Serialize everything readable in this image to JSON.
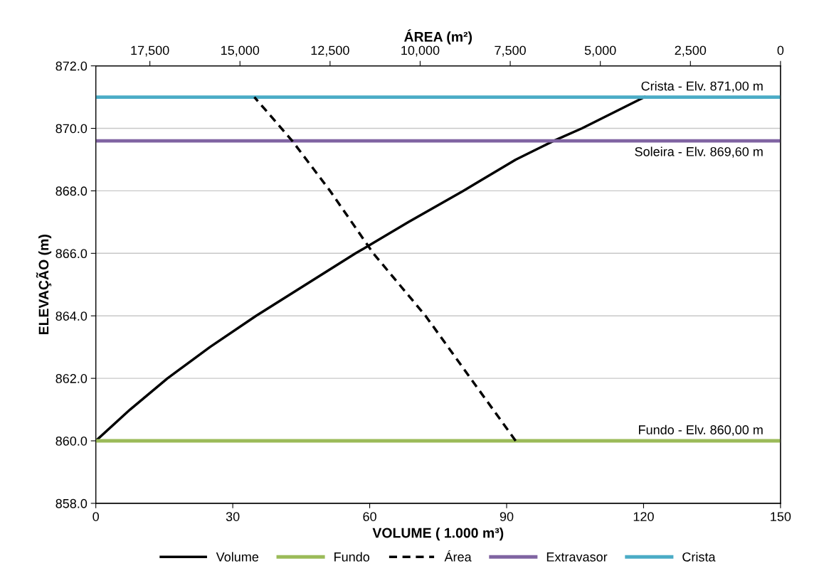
{
  "chart_data": {
    "type": "line",
    "xlabel": "VOLUME ( 1.000 m³)",
    "ylabel": "ELEVAÇÃO (m)",
    "x2label": "ÁREA (m²)",
    "xlim": [
      0,
      150
    ],
    "xticks": [
      0,
      30,
      60,
      90,
      120,
      150
    ],
    "x2lim": [
      19000,
      0
    ],
    "x2ticks": [
      {
        "value": 17500,
        "label": "17,500"
      },
      {
        "value": 15000,
        "label": "15,000"
      },
      {
        "value": 12500,
        "label": "12,500"
      },
      {
        "value": 10000,
        "label": "10,000"
      },
      {
        "value": 7500,
        "label": "7,500"
      },
      {
        "value": 5000,
        "label": "5,000"
      },
      {
        "value": 2500,
        "label": "2,500"
      },
      0
    ],
    "ylim": [
      858,
      872
    ],
    "yticks": [
      {
        "value": 858,
        "label": "858.0"
      },
      {
        "value": 860,
        "label": "860.0"
      },
      {
        "value": 862,
        "label": "862.0"
      },
      {
        "value": 864,
        "label": "864.0"
      },
      {
        "value": 866,
        "label": "866.0"
      },
      {
        "value": 868,
        "label": "868.0"
      },
      {
        "value": 870,
        "label": "870.0"
      },
      {
        "value": 872,
        "label": "872.0"
      }
    ],
    "grid": "y",
    "legend": "bottom",
    "series": [
      {
        "name": "Volume",
        "color": "#000000",
        "line_style": "solid",
        "x": [
          0,
          7.5,
          15.7,
          25,
          35.1,
          46,
          56.9,
          68.5,
          80.5,
          92,
          100.3,
          106.5,
          120.2
        ],
        "values": [
          860,
          861,
          862,
          863,
          864,
          865,
          866,
          867,
          868,
          869,
          869.6,
          870,
          871
        ]
      },
      {
        "name": "Fundo",
        "color": "#9bbb59",
        "line_style": "solid",
        "x": [
          0,
          150
        ],
        "values": [
          860,
          860
        ]
      },
      {
        "name": "Área",
        "color": "#000000",
        "line_style": "dashed",
        "axis": "x2",
        "x": [
          7350,
          8600,
          9850,
          11300,
          12500,
          13550,
          14600
        ],
        "values": [
          860,
          862,
          864,
          866,
          868,
          869.6,
          871
        ]
      },
      {
        "name": "Extravasor",
        "color": "#8064a2",
        "line_style": "solid",
        "x": [
          0,
          150
        ],
        "values": [
          869.6,
          869.6
        ]
      },
      {
        "name": "Crista",
        "color": "#4bacc6",
        "line_style": "solid",
        "x": [
          0,
          150
        ],
        "values": [
          871,
          871
        ]
      }
    ],
    "annotations": [
      {
        "text": "Crista - Elv. 871,00 m",
        "y": 871
      },
      {
        "text": "Soleira - Elv. 869,60 m",
        "y": 869.6
      },
      {
        "text": "Fundo - Elv. 860,00 m",
        "y": 860
      }
    ]
  }
}
